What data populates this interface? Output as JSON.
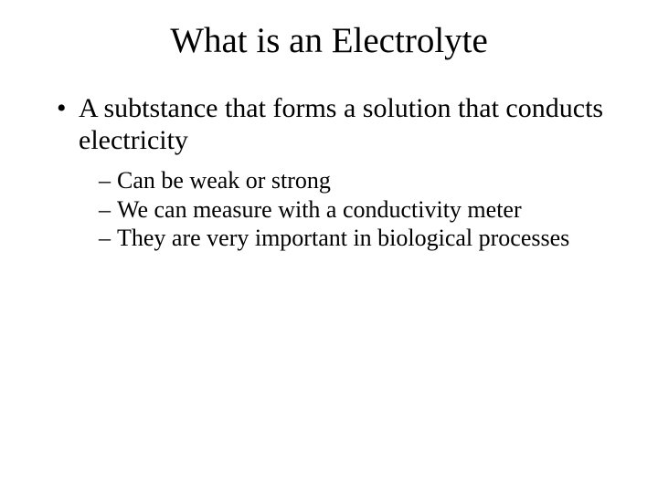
{
  "slide": {
    "title": "What is an Electrolyte",
    "title_fontsize": 39,
    "body_fontsize_l1": 30,
    "body_fontsize_l2": 26,
    "text_color": "#000000",
    "background_color": "#ffffff",
    "font_family": "Times New Roman",
    "bullets": [
      {
        "text": "A subtstance that forms a solution that conducts electricity",
        "children": [
          {
            "text": "Can be weak or strong"
          },
          {
            "text": "We can measure with a conductivity meter"
          },
          {
            "text": "They are very important in biological processes"
          }
        ]
      }
    ]
  }
}
